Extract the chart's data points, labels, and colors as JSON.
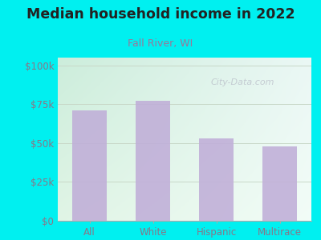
{
  "title": "Median household income in 2022",
  "subtitle": "Fall River, WI",
  "categories": [
    "All",
    "White",
    "Hispanic",
    "Multirace"
  ],
  "values": [
    71000,
    77000,
    53000,
    48000
  ],
  "bar_color": "#c0aed8",
  "background_color": "#00f0f0",
  "tick_color": "#887788",
  "title_color": "#222222",
  "subtitle_color": "#997799",
  "grid_color": "#c8d8c8",
  "yticks": [
    0,
    25000,
    50000,
    75000,
    100000
  ],
  "ytick_labels": [
    "$0",
    "$25k",
    "$50k",
    "$75k",
    "$100k"
  ],
  "ylim": [
    0,
    105000
  ],
  "watermark": "City-Data.com"
}
